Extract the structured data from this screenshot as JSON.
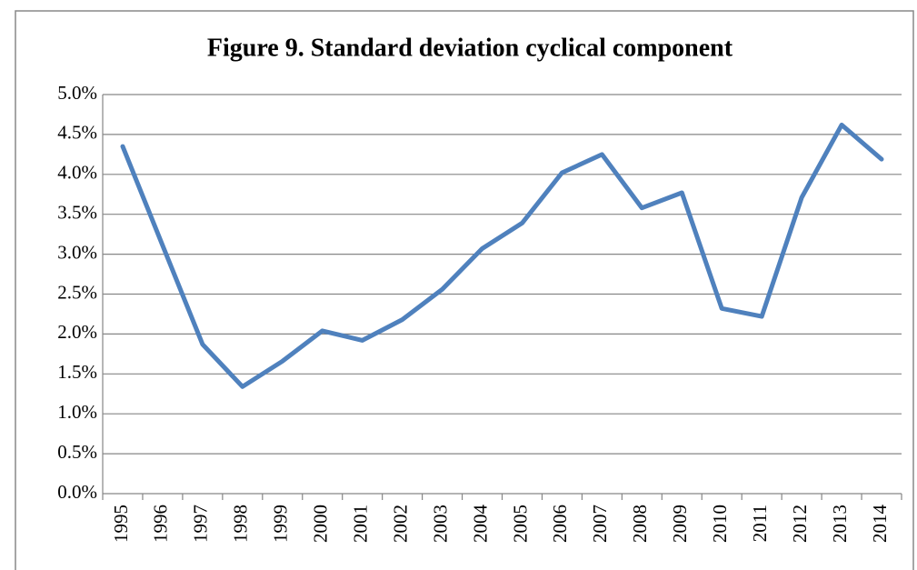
{
  "chart_data": {
    "type": "line",
    "title": "Figure 9. Standard deviation cyclical component",
    "categories": [
      "1995",
      "1996",
      "1997",
      "1998",
      "1999",
      "2000",
      "2001",
      "2002",
      "2003",
      "2004",
      "2005",
      "2006",
      "2007",
      "2008",
      "2009",
      "2010",
      "2011",
      "2012",
      "2013",
      "2014"
    ],
    "series": [
      {
        "name": "Standard deviation cyclical component",
        "color": "#4f81bd",
        "values": [
          4.35,
          3.11,
          1.87,
          1.34,
          1.66,
          2.04,
          1.92,
          2.18,
          2.56,
          3.07,
          3.39,
          4.02,
          4.25,
          3.58,
          3.77,
          2.32,
          2.22,
          3.71,
          4.62,
          4.19
        ]
      }
    ],
    "ylim": [
      0,
      5
    ],
    "yticks": [
      {
        "value": 0,
        "label": "0.0%"
      },
      {
        "value": 0.5,
        "label": "0.5%"
      },
      {
        "value": 1,
        "label": "1.0%"
      },
      {
        "value": 1.5,
        "label": "1.5%"
      },
      {
        "value": 2,
        "label": "2.0%"
      },
      {
        "value": 2.5,
        "label": "2.5%"
      },
      {
        "value": 3,
        "label": "3.0%"
      },
      {
        "value": 3.5,
        "label": "3.5%"
      },
      {
        "value": 4,
        "label": "4.0%"
      },
      {
        "value": 4.5,
        "label": "4.5%"
      },
      {
        "value": 5,
        "label": "5.0%"
      }
    ],
    "grid": true
  }
}
